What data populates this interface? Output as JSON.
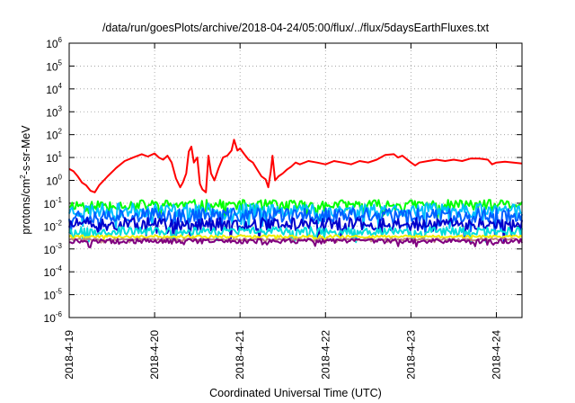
{
  "chart_data": {
    "type": "line",
    "title": "/data/run/goesPlots/archive/2018-04-24/05:00/flux/../flux/5daysEarthFluxes.txt",
    "xlabel": "Coordinated Universal Time (UTC)",
    "ylabel": {
      "base": "protons/cm",
      "sup": "2",
      "rest": "-s-sr-MeV"
    },
    "y_scale": "log",
    "ylim": [
      1e-06,
      1000000.0
    ],
    "xlim_days": [
      0,
      5.3
    ],
    "y_ticks": [
      {
        "exp": -6,
        "label": "10",
        "sup": "-6"
      },
      {
        "exp": -5,
        "label": "10",
        "sup": "-5"
      },
      {
        "exp": -4,
        "label": "10",
        "sup": "-4"
      },
      {
        "exp": -3,
        "label": "10",
        "sup": "-3"
      },
      {
        "exp": -2,
        "label": "10",
        "sup": "-2"
      },
      {
        "exp": -1,
        "label": "10",
        "sup": "-1"
      },
      {
        "exp": 0,
        "label": "10",
        "sup": "0"
      },
      {
        "exp": 1,
        "label": "10",
        "sup": "1"
      },
      {
        "exp": 2,
        "label": "10",
        "sup": "2"
      },
      {
        "exp": 3,
        "label": "10",
        "sup": "3"
      },
      {
        "exp": 4,
        "label": "10",
        "sup": "4"
      },
      {
        "exp": 5,
        "label": "10",
        "sup": "5"
      },
      {
        "exp": 6,
        "label": "10",
        "sup": "6"
      }
    ],
    "x_ticks": [
      {
        "day": 0,
        "label": "2018-4-19"
      },
      {
        "day": 1,
        "label": "2018-4-20"
      },
      {
        "day": 2,
        "label": "2018-4-21"
      },
      {
        "day": 3,
        "label": "2018-4-22"
      },
      {
        "day": 4,
        "label": "2018-4-23"
      },
      {
        "day": 5,
        "label": "2018-4-24"
      }
    ],
    "grid": true,
    "series": [
      {
        "color": "#ff0000",
        "points": [
          [
            0,
            3.2
          ],
          [
            0.05,
            2.5
          ],
          [
            0.1,
            1.5
          ],
          [
            0.15,
            0.8
          ],
          [
            0.2,
            0.6
          ],
          [
            0.25,
            0.35
          ],
          [
            0.3,
            0.3
          ],
          [
            0.35,
            0.6
          ],
          [
            0.45,
            1.5
          ],
          [
            0.55,
            3.5
          ],
          [
            0.65,
            7
          ],
          [
            0.75,
            10
          ],
          [
            0.85,
            14
          ],
          [
            0.92,
            11
          ],
          [
            1.0,
            15
          ],
          [
            1.05,
            10
          ],
          [
            1.1,
            8
          ],
          [
            1.15,
            12
          ],
          [
            1.2,
            6
          ],
          [
            1.25,
            1.2
          ],
          [
            1.3,
            0.5
          ],
          [
            1.33,
            0.8
          ],
          [
            1.37,
            2
          ],
          [
            1.4,
            18
          ],
          [
            1.43,
            30
          ],
          [
            1.46,
            6
          ],
          [
            1.5,
            10
          ],
          [
            1.53,
            0.7
          ],
          [
            1.56,
            0.4
          ],
          [
            1.6,
            0.3
          ],
          [
            1.63,
            12
          ],
          [
            1.66,
            2
          ],
          [
            1.7,
            1
          ],
          [
            1.75,
            3.5
          ],
          [
            1.8,
            10
          ],
          [
            1.85,
            12
          ],
          [
            1.9,
            20
          ],
          [
            1.93,
            60
          ],
          [
            1.97,
            20
          ],
          [
            2.0,
            25
          ],
          [
            2.05,
            14
          ],
          [
            2.1,
            8
          ],
          [
            2.15,
            6
          ],
          [
            2.2,
            3
          ],
          [
            2.25,
            1.5
          ],
          [
            2.3,
            1.1
          ],
          [
            2.33,
            0.5
          ],
          [
            2.36,
            2.5
          ],
          [
            2.38,
            12
          ],
          [
            2.41,
            1
          ],
          [
            2.45,
            1.5
          ],
          [
            2.5,
            2
          ],
          [
            2.55,
            3
          ],
          [
            2.6,
            4
          ],
          [
            2.65,
            6
          ],
          [
            2.7,
            5
          ],
          [
            2.8,
            7
          ],
          [
            2.9,
            6
          ],
          [
            3.0,
            5
          ],
          [
            3.1,
            7
          ],
          [
            3.2,
            6
          ],
          [
            3.3,
            5
          ],
          [
            3.4,
            7
          ],
          [
            3.5,
            6
          ],
          [
            3.6,
            8
          ],
          [
            3.7,
            13
          ],
          [
            3.8,
            14
          ],
          [
            3.85,
            10
          ],
          [
            3.9,
            12
          ],
          [
            4.0,
            6
          ],
          [
            4.05,
            4.5
          ],
          [
            4.1,
            6
          ],
          [
            4.2,
            7
          ],
          [
            4.3,
            8
          ],
          [
            4.4,
            7
          ],
          [
            4.5,
            8
          ],
          [
            4.6,
            7
          ],
          [
            4.7,
            9
          ],
          [
            4.8,
            9
          ],
          [
            4.9,
            8
          ],
          [
            4.95,
            5
          ],
          [
            5.0,
            6
          ],
          [
            5.1,
            6.5
          ],
          [
            5.2,
            6
          ],
          [
            5.3,
            5.5
          ]
        ]
      },
      {
        "color": "#00ff00",
        "base": 0.085,
        "amp": 0.22,
        "seed": 11
      },
      {
        "color": "#00bfff",
        "base": 0.05,
        "amp": 0.3,
        "seed": 23
      },
      {
        "color": "#0060ff",
        "base": 0.03,
        "amp": 0.32,
        "seed": 37
      },
      {
        "color": "#0000cc",
        "base": 0.012,
        "amp": 0.28,
        "seed": 51
      },
      {
        "color": "#00dddd",
        "base": 0.006,
        "amp": 0.18,
        "seed": 67
      },
      {
        "color": "#eeee00",
        "base": 0.0035,
        "amp": 0.06,
        "seed": 79
      },
      {
        "color": "#c08080",
        "base": 0.0026,
        "amp": 0.05,
        "seed": 83
      },
      {
        "color": "#800080",
        "base": 0.0022,
        "amp": 0.1,
        "seed": 97
      }
    ]
  }
}
